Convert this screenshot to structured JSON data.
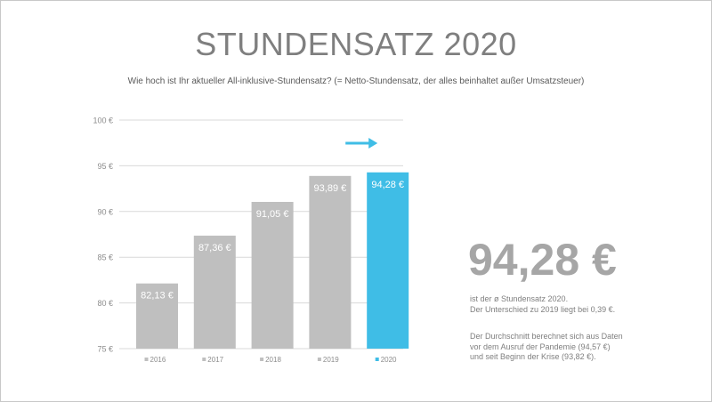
{
  "slide": {
    "title": "STUNDENSATZ 2020",
    "subtitle": "Wie hoch ist Ihr  aktueller All-inklusive-Stundensatz?  (= Netto-Stundensatz,  der alles beinhaltet außer Umsatzsteuer)",
    "big_value": "94,28 €",
    "note_1": [
      "ist der ø Stundensatz  2020.",
      "Der Unterschied  zu 2019 liegt bei 0,39 €."
    ],
    "note_2": [
      "Der Durchschnitt  berechnet  sich aus Daten",
      "vor dem Ausruf  der Pandemie (94,57 €)",
      "und seit Beginn der Krise (93,82 €)."
    ]
  },
  "colors": {
    "bar_default": "#bfbfbf",
    "bar_highlight": "#3fbde6",
    "arrow": "#3fbde6",
    "grid": "#d9d9d9",
    "title": "#7f7f7f"
  },
  "chart_data": {
    "type": "bar",
    "categories": [
      "2016",
      "2017",
      "2018",
      "2019",
      "2020"
    ],
    "values": [
      82.13,
      87.36,
      91.05,
      93.89,
      94.28
    ],
    "data_labels": [
      "82,13 €",
      "87,36 €",
      "91,05 €",
      "93,89 €",
      "94,28 €"
    ],
    "highlight_index": 4,
    "ylim": [
      75,
      100
    ],
    "ytick_values": [
      75,
      80,
      85,
      90,
      95,
      100
    ],
    "ytick_labels": [
      "75 €",
      "80 €",
      "85 €",
      "90 €",
      "95 €",
      "100 €"
    ],
    "legend_labels": [
      "2016",
      "2017",
      "2018",
      "2019",
      "2020"
    ],
    "legend_position": "bottom",
    "grid": true,
    "annotation": "right-arrow-icon above 2020 bar"
  }
}
